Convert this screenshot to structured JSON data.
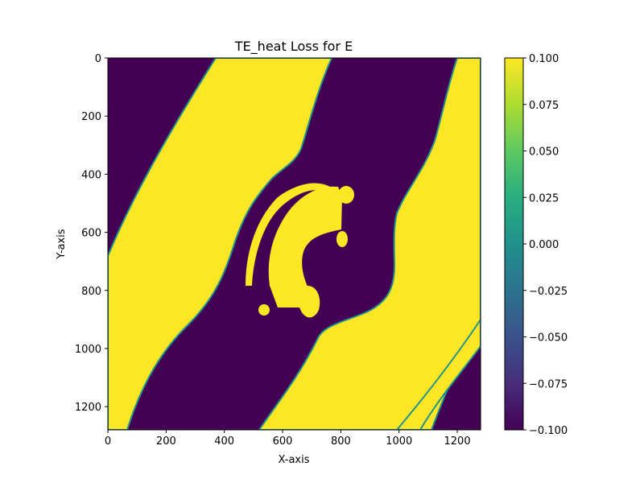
{
  "chart_data": {
    "type": "heatmap",
    "title": "TE_heat Loss for E",
    "xlabel": "X-axis",
    "ylabel": "Y-axis",
    "xlim": [
      0,
      1280
    ],
    "ylim": [
      1280,
      0
    ],
    "x_ticks": [
      "0",
      "200",
      "400",
      "600",
      "800",
      "1000",
      "1200"
    ],
    "y_ticks": [
      "0",
      "200",
      "400",
      "600",
      "800",
      "1000",
      "1200"
    ],
    "colormap": "viridis",
    "colorbar": {
      "min": -0.1,
      "max": 0.1,
      "ticks": [
        "0.100",
        "0.075",
        "0.050",
        "0.025",
        "0.000",
        "−0.025",
        "−0.050",
        "−0.075",
        "−0.100"
      ]
    },
    "colors": {
      "low": "#440154",
      "high": "#fde725"
    },
    "regions": [
      {
        "name": "left-yellow-band",
        "value": 0.1
      },
      {
        "name": "right-yellow-band",
        "value": 0.1
      },
      {
        "name": "bottom-right-yellow-band",
        "value": 0.1
      },
      {
        "name": "center-yellow-blob",
        "value": 0.1
      },
      {
        "name": "background",
        "value": -0.1
      }
    ]
  }
}
